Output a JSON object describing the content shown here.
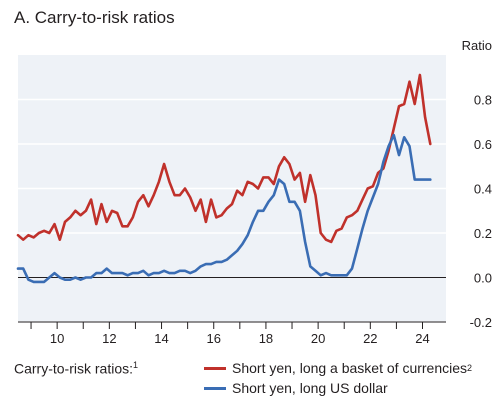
{
  "chart_data": {
    "type": "line",
    "title": "A. Carry-to-risk ratios",
    "ylabel": "Ratio",
    "ylim": [
      -0.2,
      1.0
    ],
    "xlim": [
      2008.5,
      2024.9
    ],
    "yticks": [
      "-0.2",
      "0.0",
      "0.2",
      "0.4",
      "0.6",
      "0.8"
    ],
    "ytick_values": [
      -0.2,
      0.0,
      0.2,
      0.4,
      0.6,
      0.8
    ],
    "xticks": [
      "10",
      "12",
      "14",
      "16",
      "18",
      "20",
      "22",
      "24"
    ],
    "xtick_values": [
      2010,
      2012,
      2014,
      2016,
      2018,
      2020,
      2022,
      2024
    ],
    "grid": true,
    "legend_lead": "Carry-to-risk ratios:",
    "legend_lead_note": "1",
    "series": [
      {
        "name": "Short yen, long a basket of currencies",
        "note": "2",
        "color": "#c0312b",
        "x": [
          2008.5,
          2008.7,
          2008.9,
          2009.1,
          2009.3,
          2009.5,
          2009.7,
          2009.9,
          2010.1,
          2010.3,
          2010.5,
          2010.7,
          2010.9,
          2011.1,
          2011.3,
          2011.5,
          2011.7,
          2011.9,
          2012.1,
          2012.3,
          2012.5,
          2012.7,
          2012.9,
          2013.1,
          2013.3,
          2013.5,
          2013.7,
          2013.9,
          2014.1,
          2014.3,
          2014.5,
          2014.7,
          2014.9,
          2015.1,
          2015.3,
          2015.5,
          2015.7,
          2015.9,
          2016.1,
          2016.3,
          2016.5,
          2016.7,
          2016.9,
          2017.1,
          2017.3,
          2017.5,
          2017.7,
          2017.9,
          2018.1,
          2018.3,
          2018.5,
          2018.7,
          2018.9,
          2019.1,
          2019.3,
          2019.5,
          2019.7,
          2019.9,
          2020.1,
          2020.3,
          2020.5,
          2020.7,
          2020.9,
          2021.1,
          2021.3,
          2021.5,
          2021.7,
          2021.9,
          2022.1,
          2022.3,
          2022.5,
          2022.7,
          2022.9,
          2023.1,
          2023.3,
          2023.5,
          2023.7,
          2023.9,
          2024.1,
          2024.3
        ],
        "values": [
          0.19,
          0.17,
          0.19,
          0.18,
          0.2,
          0.21,
          0.2,
          0.24,
          0.17,
          0.25,
          0.27,
          0.3,
          0.28,
          0.3,
          0.35,
          0.24,
          0.33,
          0.25,
          0.3,
          0.29,
          0.23,
          0.23,
          0.27,
          0.34,
          0.37,
          0.32,
          0.37,
          0.43,
          0.51,
          0.43,
          0.37,
          0.37,
          0.4,
          0.36,
          0.3,
          0.35,
          0.25,
          0.35,
          0.27,
          0.28,
          0.31,
          0.33,
          0.39,
          0.37,
          0.43,
          0.42,
          0.4,
          0.45,
          0.45,
          0.42,
          0.5,
          0.54,
          0.51,
          0.44,
          0.47,
          0.34,
          0.46,
          0.37,
          0.2,
          0.17,
          0.16,
          0.21,
          0.22,
          0.27,
          0.28,
          0.3,
          0.35,
          0.4,
          0.41,
          0.47,
          0.49,
          0.57,
          0.67,
          0.77,
          0.78,
          0.88,
          0.78,
          0.91,
          0.72,
          0.6
        ]
      },
      {
        "name": "Short yen, long US dollar",
        "note": "",
        "color": "#3a6db4",
        "x": [
          2008.5,
          2008.7,
          2008.9,
          2009.1,
          2009.3,
          2009.5,
          2009.7,
          2009.9,
          2010.1,
          2010.3,
          2010.5,
          2010.7,
          2010.9,
          2011.1,
          2011.3,
          2011.5,
          2011.7,
          2011.9,
          2012.1,
          2012.3,
          2012.5,
          2012.7,
          2012.9,
          2013.1,
          2013.3,
          2013.5,
          2013.7,
          2013.9,
          2014.1,
          2014.3,
          2014.5,
          2014.7,
          2014.9,
          2015.1,
          2015.3,
          2015.5,
          2015.7,
          2015.9,
          2016.1,
          2016.3,
          2016.5,
          2016.7,
          2016.9,
          2017.1,
          2017.3,
          2017.5,
          2017.7,
          2017.9,
          2018.1,
          2018.3,
          2018.5,
          2018.7,
          2018.9,
          2019.1,
          2019.3,
          2019.5,
          2019.7,
          2019.9,
          2020.1,
          2020.3,
          2020.5,
          2020.7,
          2020.9,
          2021.1,
          2021.3,
          2021.5,
          2021.7,
          2021.9,
          2022.1,
          2022.3,
          2022.5,
          2022.7,
          2022.9,
          2023.1,
          2023.3,
          2023.5,
          2023.7,
          2023.9,
          2024.1,
          2024.3
        ],
        "values": [
          0.04,
          0.04,
          -0.01,
          -0.02,
          -0.02,
          -0.02,
          0.0,
          0.02,
          0.0,
          -0.01,
          -0.01,
          0.0,
          -0.01,
          0.0,
          0.0,
          0.02,
          0.02,
          0.04,
          0.02,
          0.02,
          0.02,
          0.01,
          0.02,
          0.02,
          0.03,
          0.01,
          0.02,
          0.02,
          0.03,
          0.02,
          0.02,
          0.03,
          0.03,
          0.02,
          0.03,
          0.05,
          0.06,
          0.06,
          0.07,
          0.07,
          0.08,
          0.1,
          0.12,
          0.15,
          0.19,
          0.25,
          0.3,
          0.3,
          0.34,
          0.37,
          0.44,
          0.42,
          0.34,
          0.34,
          0.3,
          0.16,
          0.05,
          0.03,
          0.01,
          0.02,
          0.01,
          0.01,
          0.01,
          0.01,
          0.04,
          0.13,
          0.22,
          0.3,
          0.36,
          0.42,
          0.52,
          0.59,
          0.64,
          0.55,
          0.63,
          0.59,
          0.44,
          0.44,
          0.44,
          0.44
        ]
      }
    ]
  }
}
